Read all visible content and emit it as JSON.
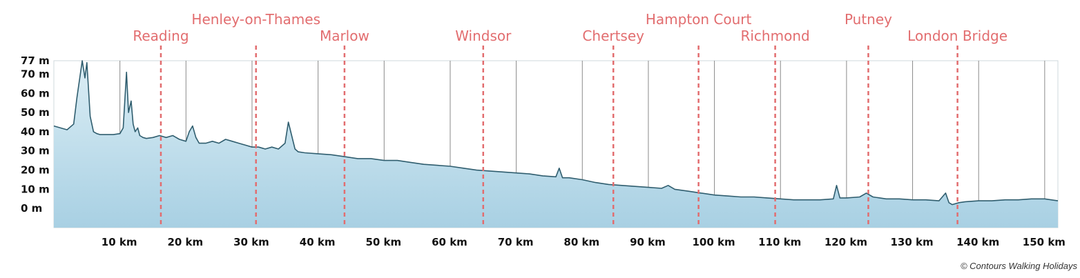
{
  "chart_data": {
    "type": "area",
    "title": "",
    "xlabel": "",
    "ylabel": "",
    "xlim": [
      0,
      152
    ],
    "ylim": [
      -10,
      77
    ],
    "grid": "vertical",
    "x_ticks": [
      10,
      20,
      30,
      40,
      50,
      60,
      70,
      80,
      90,
      100,
      110,
      120,
      130,
      140,
      150
    ],
    "x_tick_labels": [
      "10 km",
      "20 km",
      "30 km",
      "40 km",
      "50 km",
      "60 km",
      "70 km",
      "80 km",
      "90 km",
      "100 km",
      "110 km",
      "120 km",
      "130 km",
      "140 km",
      "150 km"
    ],
    "y_ticks": [
      0,
      10,
      20,
      30,
      40,
      50,
      60,
      70,
      77
    ],
    "y_tick_labels": [
      "0 m",
      "10 m",
      "20 m",
      "30 m",
      "40 m",
      "50 m",
      "60 m",
      "70 m",
      "77 m"
    ],
    "x": [
      0,
      2,
      3,
      3.5,
      4,
      4.3,
      4.7,
      5,
      5.5,
      6,
      6.5,
      7,
      8,
      9,
      10,
      10.5,
      11,
      11.3,
      11.7,
      12,
      12.3,
      12.7,
      13,
      13.5,
      14,
      15,
      16,
      17,
      18,
      19,
      20,
      20.5,
      21,
      21.5,
      22,
      23,
      24,
      25,
      26,
      27,
      28,
      29,
      30,
      31,
      32,
      33,
      34,
      35,
      35.5,
      36,
      36.5,
      37,
      38,
      40,
      42,
      44,
      46,
      48,
      50,
      52,
      54,
      56,
      58,
      60,
      62,
      64,
      66,
      68,
      70,
      72,
      74,
      76,
      76.5,
      77,
      78,
      80,
      82,
      84,
      86,
      88,
      90,
      92,
      93,
      94,
      96,
      98,
      100,
      102,
      104,
      106,
      108,
      110,
      112,
      114,
      116,
      118,
      118.5,
      119,
      120,
      122,
      123,
      124,
      126,
      128,
      130,
      132,
      134,
      135,
      135.5,
      136,
      137,
      138,
      140,
      142,
      144,
      146,
      148,
      150,
      152
    ],
    "values": [
      43,
      41,
      44,
      58,
      70,
      77,
      68,
      76,
      48,
      40,
      39,
      38.5,
      38.5,
      38.5,
      39,
      42,
      71,
      50,
      56,
      44,
      40,
      42,
      38,
      37,
      36.5,
      37,
      38,
      37,
      38,
      36,
      35,
      40,
      43,
      37,
      34,
      34,
      35,
      34,
      36,
      35,
      34,
      33,
      32,
      32,
      31,
      32,
      31,
      34,
      45,
      38,
      31,
      29.5,
      29,
      28.5,
      28,
      27,
      26,
      26,
      25,
      25,
      24,
      23,
      22.5,
      22,
      21,
      20,
      19.5,
      19,
      18.5,
      18,
      17,
      16.5,
      21,
      16,
      16,
      15,
      13.5,
      12.5,
      12,
      11.5,
      11,
      10.5,
      12,
      10,
      9,
      8,
      7,
      6.5,
      6,
      6,
      5.5,
      5,
      4.5,
      4.5,
      4.5,
      5,
      12,
      5.5,
      5.5,
      6,
      8,
      6,
      5,
      5,
      4.5,
      4.5,
      4,
      8,
      3,
      2,
      3,
      3.5,
      4,
      4,
      4.5,
      4.5,
      5,
      5,
      4
    ]
  },
  "towns": [
    {
      "name": "Reading",
      "km": 16.2,
      "row": 2
    },
    {
      "name": "Henley-on-Thames",
      "km": 30.6,
      "row": 1
    },
    {
      "name": "Marlow",
      "km": 44.0,
      "row": 2
    },
    {
      "name": "Windsor",
      "km": 65.0,
      "row": 2
    },
    {
      "name": "Chertsey",
      "km": 84.7,
      "row": 2
    },
    {
      "name": "Hampton Court",
      "km": 97.6,
      "row": 1
    },
    {
      "name": "Richmond",
      "km": 109.2,
      "row": 2
    },
    {
      "name": "Putney",
      "km": 123.3,
      "row": 1
    },
    {
      "name": "London Bridge",
      "km": 136.8,
      "row": 2
    }
  ],
  "colors": {
    "town": "#e26d6f",
    "line": "#2f5d6e",
    "fill_top": "#dceef5",
    "fill_bottom": "#a8d0e3",
    "grid": "#8a8a8a"
  },
  "copyright": "© Contours Walking Holidays"
}
